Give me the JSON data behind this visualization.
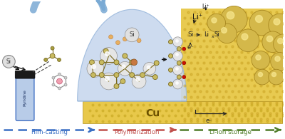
{
  "bg_color": "#ffffff",
  "arrow_blue_color": "#3a6fc4",
  "arrow_orange_color": "#c0504d",
  "arrow_green_color": "#4f7c28",
  "cu_color": "#e8c84a",
  "cu_dark": "#c8a820",
  "blue_bg": "#c8d8ee",
  "si_ball_color": "#e8e8e8",
  "si_ball_edge": "#a0a0a0",
  "polymer_node_color": "#c8ba60",
  "polymer_node_edge": "#7a6a20",
  "stage_labels": [
    "Film-casting",
    "Polymerization",
    "Li-ion storage"
  ],
  "stage_colors": [
    "#3a6fc4",
    "#c0504d",
    "#4f7c28"
  ],
  "label_cu": "Cu",
  "yellow_ball_color": "#d4b84a",
  "yellow_ball_edge": "#a88820",
  "yellow_bg": "#e8ca50"
}
